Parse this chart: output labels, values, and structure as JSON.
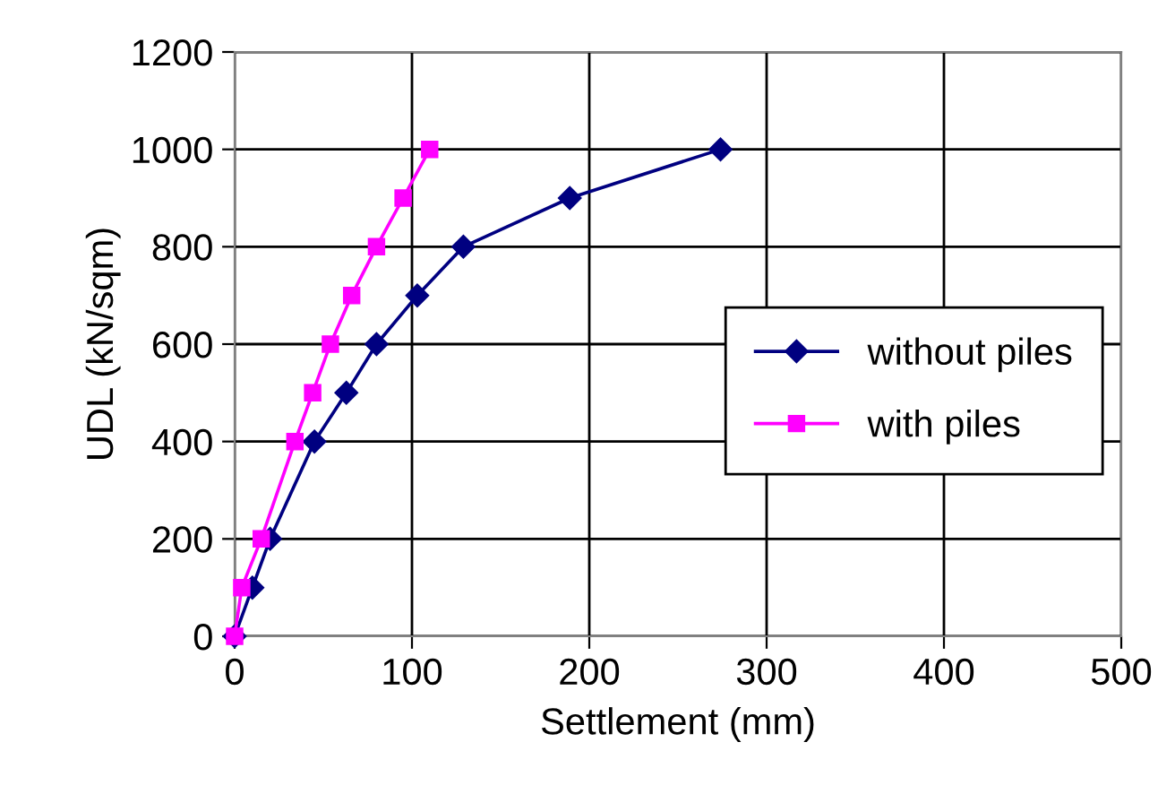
{
  "chart_data": {
    "type": "line",
    "xlabel": "Settlement (mm)",
    "ylabel": "UDL (kN/sqm)",
    "xlim": [
      0,
      500
    ],
    "xticks": [
      0,
      100,
      200,
      300,
      400,
      500
    ],
    "ylim": [
      0,
      1200
    ],
    "yticks": [
      0,
      200,
      400,
      600,
      800,
      1000,
      1200
    ],
    "grid": true,
    "legend": "right",
    "series": [
      {
        "name": "without piles",
        "color": "#000080",
        "marker": "diamond",
        "x": [
          0,
          10,
          20,
          45,
          63,
          80,
          103,
          129,
          189,
          274
        ],
        "values": [
          0,
          100,
          200,
          400,
          500,
          600,
          700,
          800,
          900,
          1000
        ]
      },
      {
        "name": "with piles",
        "color": "#ff00ff",
        "marker": "square",
        "x": [
          0,
          4,
          15,
          34,
          44,
          54,
          66,
          80,
          95,
          110
        ],
        "values": [
          0,
          100,
          200,
          400,
          500,
          600,
          700,
          800,
          900,
          1000
        ]
      }
    ]
  }
}
